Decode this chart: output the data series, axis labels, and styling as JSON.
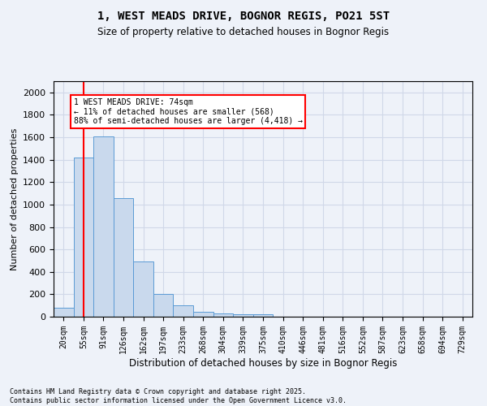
{
  "title": "1, WEST MEADS DRIVE, BOGNOR REGIS, PO21 5ST",
  "subtitle": "Size of property relative to detached houses in Bognor Regis",
  "xlabel": "Distribution of detached houses by size in Bognor Regis",
  "ylabel": "Number of detached properties",
  "bar_values": [
    80,
    1420,
    1610,
    1055,
    495,
    205,
    105,
    40,
    30,
    20,
    20,
    0,
    0,
    0,
    0,
    0,
    0,
    0,
    0,
    0,
    0
  ],
  "bar_labels": [
    "20sqm",
    "55sqm",
    "91sqm",
    "126sqm",
    "162sqm",
    "197sqm",
    "233sqm",
    "268sqm",
    "304sqm",
    "339sqm",
    "375sqm",
    "410sqm",
    "446sqm",
    "481sqm",
    "516sqm",
    "552sqm",
    "587sqm",
    "623sqm",
    "658sqm",
    "694sqm",
    "729sqm"
  ],
  "bar_color": "#c9d9ed",
  "bar_edge_color": "#5b9bd5",
  "vline_x": 1.0,
  "vline_color": "red",
  "ylim": [
    0,
    2100
  ],
  "yticks": [
    0,
    200,
    400,
    600,
    800,
    1000,
    1200,
    1400,
    1600,
    1800,
    2000
  ],
  "annotation_text": "1 WEST MEADS DRIVE: 74sqm\n← 11% of detached houses are smaller (568)\n88% of semi-detached houses are larger (4,418) →",
  "annotation_box_color": "white",
  "annotation_box_edge": "red",
  "footer_line1": "Contains HM Land Registry data © Crown copyright and database right 2025.",
  "footer_line2": "Contains public sector information licensed under the Open Government Licence v3.0.",
  "grid_color": "#d0d8e8",
  "background_color": "#eef2f9"
}
